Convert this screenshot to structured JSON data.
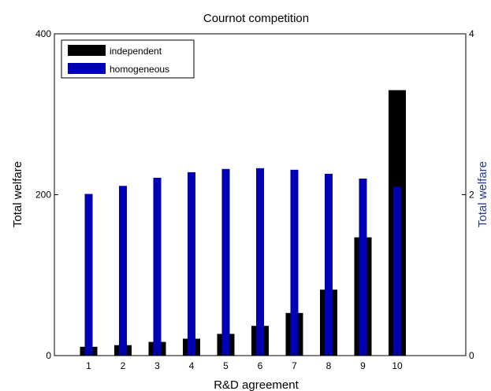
{
  "chart_data": {
    "type": "bar",
    "title": "Cournot competition",
    "xlabel": "R&D agreement",
    "ylabel_left": "Total welfare",
    "ylabel_right": "Total welfare",
    "categories": [
      "1",
      "2",
      "3",
      "4",
      "5",
      "6",
      "7",
      "8",
      "9",
      "10"
    ],
    "xlim": [
      0,
      12
    ],
    "ylim_left": [
      0,
      400
    ],
    "ylim_right": [
      0,
      4
    ],
    "yticks_left": [
      "0",
      "200",
      "400"
    ],
    "yticks_right": [
      "0",
      "2",
      "4"
    ],
    "grid": false,
    "legend_position": "top-left",
    "series": [
      {
        "name": "independent",
        "axis": "left",
        "color": "#000000",
        "values": [
          11,
          13,
          17,
          21,
          27,
          37,
          53,
          82,
          147,
          330
        ]
      },
      {
        "name": "homogeneous",
        "axis": "right",
        "color": "#0000b4",
        "values": [
          2.01,
          2.11,
          2.21,
          2.28,
          2.32,
          2.33,
          2.31,
          2.26,
          2.2,
          2.1
        ]
      }
    ],
    "colors": {
      "independent": "#000000",
      "homogeneous": "#0000b4",
      "right_axis": "#1f3b8f"
    }
  }
}
